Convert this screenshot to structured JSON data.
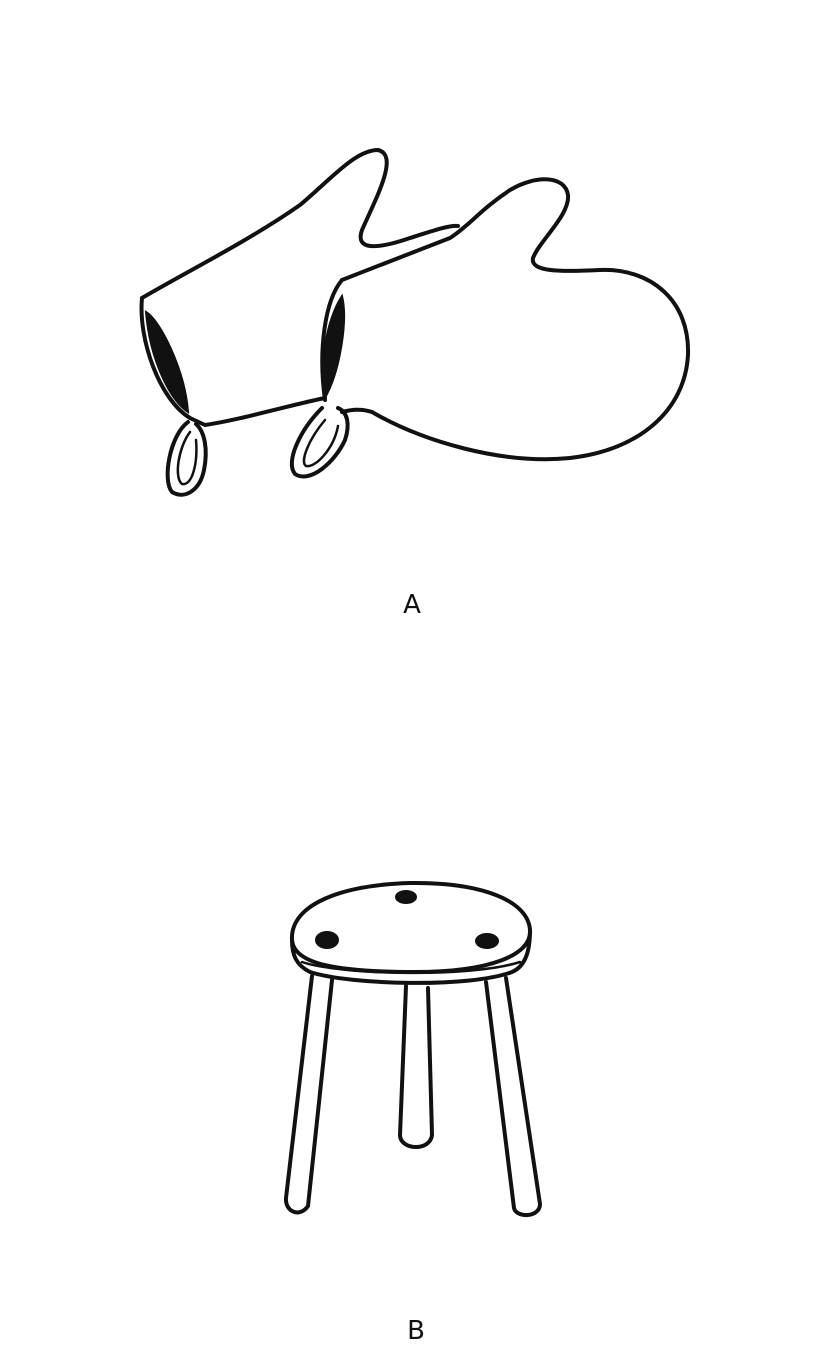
{
  "panels": [
    {
      "label": "A",
      "subject": "oven-mitts-icon"
    },
    {
      "label": "B",
      "subject": "three-legged-stool-icon"
    }
  ],
  "colors": {
    "ink": "#111111",
    "background": "#ffffff"
  }
}
